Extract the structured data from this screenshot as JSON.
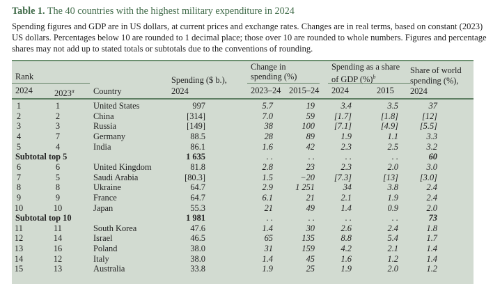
{
  "title": {
    "label": "Table 1.",
    "text": "The 40 countries with the highest military expenditure in 2024"
  },
  "description": "Spending figures and GDP are in US dollars, at current prices and exchange rates. Changes are in real terms, based on constant (2023) US dollars. Percentages below 10 are rounded to 1 decimal place; those over 10 are rounded to whole numbers. Figures and percentage shares may not add up to stated totals or subtotals due to the conventions of rounding.",
  "headers": {
    "rank": "Rank",
    "rank_2024": "2024",
    "rank_2023": "2023",
    "rank_2023_note": "a",
    "country": "Country",
    "spending": "Spending ($ b.),",
    "spending_year": "2024",
    "change": "Change in",
    "change2": "spending (%)",
    "change_a": "2023–24",
    "change_b": "2015–24",
    "gdp": "Spending as a share",
    "gdp2": "of GDP (%)",
    "gdp_note": "b",
    "gdp_a": "2024",
    "gdp_b": "2015",
    "world": "Share of world",
    "world2": "spending (%),",
    "world_year": "2024"
  },
  "rows": [
    {
      "r24": "1",
      "r23": "1",
      "country": "United States",
      "spend": "997",
      "ch1": "5.7",
      "ch2": "19",
      "g24": "3.4",
      "g15": "3.5",
      "world": "37"
    },
    {
      "r24": "2",
      "r23": "2",
      "country": "China",
      "spend": "[314]",
      "ch1": "7.0",
      "ch2": "59",
      "g24": "[1.7]",
      "g15": "[1.8]",
      "world": "[12]"
    },
    {
      "r24": "3",
      "r23": "3",
      "country": "Russia",
      "spend": "[149]",
      "ch1": "38",
      "ch2": "100",
      "g24": "[7.1]",
      "g15": "[4.9]",
      "world": "[5.5]"
    },
    {
      "r24": "4",
      "r23": "7",
      "country": "Germany",
      "spend": "88.5",
      "ch1": "28",
      "ch2": "89",
      "g24": "1.9",
      "g15": "1.1",
      "world": "3.3"
    },
    {
      "r24": "5",
      "r23": "4",
      "country": "India",
      "spend": "86.1",
      "ch1": "1.6",
      "ch2": "42",
      "g24": "2.3",
      "g15": "2.5",
      "world": "3.2"
    },
    {
      "subtotal": "Subtotal top 5",
      "spend": "1 635",
      "ch1": ". .",
      "ch2": ". .",
      "g24": ". .",
      "g15": ". .",
      "world": "60"
    },
    {
      "r24": "6",
      "r23": "6",
      "country": "United Kingdom",
      "spend": "81.8",
      "ch1": "2.8",
      "ch2": "23",
      "g24": "2.3",
      "g15": "2.0",
      "world": "3.0"
    },
    {
      "r24": "7",
      "r23": "5",
      "country": "Saudi Arabia",
      "spend": "[80.3]",
      "ch1": "1.5",
      "ch2": "−20",
      "g24": "[7.3]",
      "g15": "[13]",
      "world": "[3.0]"
    },
    {
      "r24": "8",
      "r23": "8",
      "country": "Ukraine",
      "spend": "64.7",
      "ch1": "2.9",
      "ch2": "1 251",
      "g24": "34",
      "g15": "3.8",
      "world": "2.4"
    },
    {
      "r24": "9",
      "r23": "9",
      "country": "France",
      "spend": "64.7",
      "ch1": "6.1",
      "ch2": "21",
      "g24": "2.1",
      "g15": "1.9",
      "world": "2.4"
    },
    {
      "r24": "10",
      "r23": "10",
      "country": "Japan",
      "spend": "55.3",
      "ch1": "21",
      "ch2": "49",
      "g24": "1.4",
      "g15": "0.9",
      "world": "2.0"
    },
    {
      "subtotal": "Subtotal top 10",
      "spend": "1 981",
      "ch1": ". .",
      "ch2": ". .",
      "g24": ". .",
      "g15": ". .",
      "world": "73"
    },
    {
      "r24": "11",
      "r23": "11",
      "country": "South Korea",
      "spend": "47.6",
      "ch1": "1.4",
      "ch2": "30",
      "g24": "2.6",
      "g15": "2.4",
      "world": "1.8"
    },
    {
      "r24": "12",
      "r23": "14",
      "country": "Israel",
      "spend": "46.5",
      "ch1": "65",
      "ch2": "135",
      "g24": "8.8",
      "g15": "5.4",
      "world": "1.7"
    },
    {
      "r24": "13",
      "r23": "16",
      "country": "Poland",
      "spend": "38.0",
      "ch1": "31",
      "ch2": "159",
      "g24": "4.2",
      "g15": "2.1",
      "world": "1.4"
    },
    {
      "r24": "14",
      "r23": "12",
      "country": "Italy",
      "spend": "38.0",
      "ch1": "1.4",
      "ch2": "45",
      "g24": "1.6",
      "g15": "1.2",
      "world": "1.4"
    },
    {
      "r24": "15",
      "r23": "13",
      "country": "Australia",
      "spend": "33.8",
      "ch1": "1.9",
      "ch2": "25",
      "g24": "1.9",
      "g15": "2.0",
      "world": "1.2"
    }
  ]
}
